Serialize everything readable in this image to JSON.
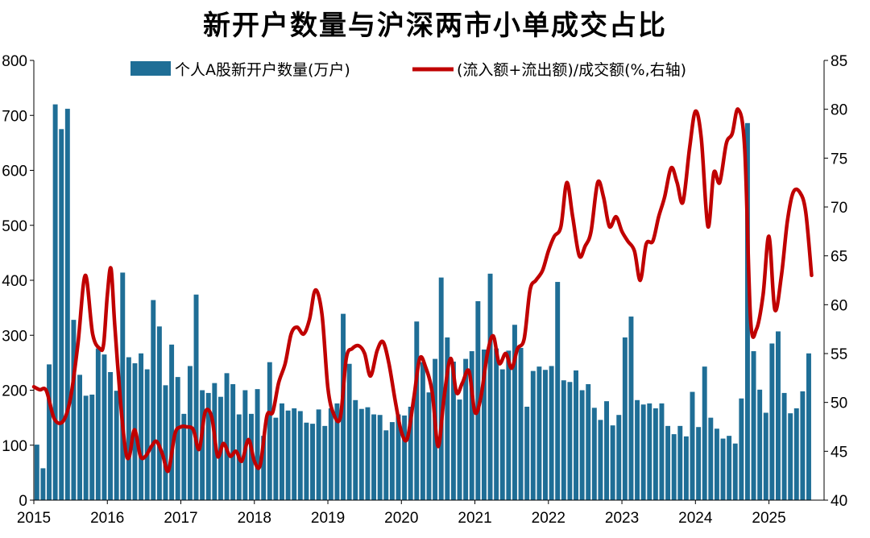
{
  "chart_data": {
    "type": "bar+line",
    "title": "新开户数量与沪深两市小单成交占比",
    "series": [
      {
        "name": "个人A股新开户数量(万户)",
        "type": "bar",
        "axis": "left",
        "color": "#1f6e96",
        "values": [
          101,
          58,
          247,
          720,
          675,
          712,
          328,
          228,
          190,
          192,
          276,
          265,
          233,
          199,
          414,
          260,
          249,
          267,
          238,
          364,
          316,
          209,
          283,
          224,
          157,
          244,
          374,
          200,
          195,
          213,
          188,
          231,
          211,
          156,
          200,
          157,
          202,
          117,
          251,
          150,
          176,
          163,
          167,
          162,
          141,
          139,
          165,
          135,
          167,
          176,
          339,
          248,
          182,
          166,
          169,
          156,
          155,
          127,
          142,
          156,
          154,
          170,
          325,
          251,
          196,
          257,
          405,
          296,
          252,
          183,
          257,
          271,
          362,
          274,
          412,
          276,
          238,
          272,
          319,
          277,
          170,
          235,
          243,
          237,
          244,
          397,
          218,
          215,
          236,
          200,
          211,
          168,
          146,
          180,
          136,
          155,
          296,
          334,
          182,
          174,
          176,
          167,
          176,
          135,
          120,
          135,
          116,
          197,
          133,
          243,
          150,
          130,
          112,
          117,
          103,
          185,
          686,
          271,
          201,
          159,
          285,
          307,
          195,
          158,
          167,
          198,
          267
        ]
      },
      {
        "name": "(流入额+流出额)/成交额(%,右轴)",
        "type": "line",
        "axis": "right",
        "color": "#c00000",
        "points": [
          [
            2015.0,
            51.6
          ],
          [
            2015.08,
            51.3
          ],
          [
            2015.17,
            51.2
          ],
          [
            2015.28,
            48.3
          ],
          [
            2015.4,
            48.1
          ],
          [
            2015.5,
            50.5
          ],
          [
            2015.6,
            56.0
          ],
          [
            2015.7,
            63.0
          ],
          [
            2015.8,
            57.0
          ],
          [
            2015.9,
            55.5
          ],
          [
            2015.95,
            56.0
          ],
          [
            2016.0,
            61.0
          ],
          [
            2016.05,
            63.7
          ],
          [
            2016.1,
            58.0
          ],
          [
            2016.18,
            50.0
          ],
          [
            2016.25,
            45.0
          ],
          [
            2016.3,
            44.5
          ],
          [
            2016.37,
            47.2
          ],
          [
            2016.45,
            44.5
          ],
          [
            2016.52,
            44.5
          ],
          [
            2016.6,
            45.5
          ],
          [
            2016.67,
            46.0
          ],
          [
            2016.75,
            44.7
          ],
          [
            2016.83,
            43.0
          ],
          [
            2016.92,
            46.8
          ],
          [
            2017.0,
            47.5
          ],
          [
            2017.08,
            47.5
          ],
          [
            2017.17,
            47.2
          ],
          [
            2017.25,
            45.2
          ],
          [
            2017.33,
            49.0
          ],
          [
            2017.42,
            48.5
          ],
          [
            2017.5,
            44.5
          ],
          [
            2017.58,
            45.8
          ],
          [
            2017.67,
            44.5
          ],
          [
            2017.75,
            45.0
          ],
          [
            2017.83,
            44.0
          ],
          [
            2017.92,
            46.2
          ],
          [
            2018.0,
            44.0
          ],
          [
            2018.08,
            43.6
          ],
          [
            2018.17,
            48.6
          ],
          [
            2018.25,
            49.0
          ],
          [
            2018.33,
            52.0
          ],
          [
            2018.42,
            54.0
          ],
          [
            2018.5,
            57.0
          ],
          [
            2018.58,
            57.7
          ],
          [
            2018.67,
            57.0
          ],
          [
            2018.75,
            58.5
          ],
          [
            2018.83,
            61.5
          ],
          [
            2018.92,
            59.0
          ],
          [
            2019.0,
            51.5
          ],
          [
            2019.08,
            48.8
          ],
          [
            2019.17,
            48.5
          ],
          [
            2019.25,
            54.5
          ],
          [
            2019.33,
            55.5
          ],
          [
            2019.42,
            55.8
          ],
          [
            2019.5,
            55.0
          ],
          [
            2019.58,
            52.7
          ],
          [
            2019.67,
            55.3
          ],
          [
            2019.75,
            56.2
          ],
          [
            2019.83,
            54.0
          ],
          [
            2019.92,
            50.0
          ],
          [
            2020.0,
            47.0
          ],
          [
            2020.08,
            46.3
          ],
          [
            2020.17,
            50.5
          ],
          [
            2020.25,
            54.5
          ],
          [
            2020.33,
            53.6
          ],
          [
            2020.42,
            51.0
          ],
          [
            2020.5,
            45.5
          ],
          [
            2020.58,
            50.5
          ],
          [
            2020.67,
            54.5
          ],
          [
            2020.75,
            51.0
          ],
          [
            2020.83,
            52.0
          ],
          [
            2020.92,
            53.2
          ],
          [
            2021.0,
            49.0
          ],
          [
            2021.08,
            50.5
          ],
          [
            2021.17,
            55.0
          ],
          [
            2021.25,
            56.8
          ],
          [
            2021.33,
            54.0
          ],
          [
            2021.42,
            55.0
          ],
          [
            2021.5,
            53.5
          ],
          [
            2021.58,
            55.5
          ],
          [
            2021.67,
            56.5
          ],
          [
            2021.75,
            61.5
          ],
          [
            2021.83,
            62.5
          ],
          [
            2021.92,
            63.5
          ],
          [
            2022.0,
            65.5
          ],
          [
            2022.08,
            67.0
          ],
          [
            2022.17,
            68.0
          ],
          [
            2022.25,
            72.5
          ],
          [
            2022.33,
            69.0
          ],
          [
            2022.42,
            65.0
          ],
          [
            2022.5,
            66.0
          ],
          [
            2022.58,
            67.5
          ],
          [
            2022.67,
            72.5
          ],
          [
            2022.75,
            71.0
          ],
          [
            2022.83,
            68.0
          ],
          [
            2022.92,
            69.0
          ],
          [
            2023.0,
            67.5
          ],
          [
            2023.08,
            66.5
          ],
          [
            2023.17,
            65.5
          ],
          [
            2023.25,
            62.5
          ],
          [
            2023.33,
            66.2
          ],
          [
            2023.42,
            66.5
          ],
          [
            2023.5,
            69.0
          ],
          [
            2023.58,
            71.0
          ],
          [
            2023.67,
            74.0
          ],
          [
            2023.75,
            72.5
          ],
          [
            2023.83,
            70.5
          ],
          [
            2023.92,
            76.0
          ],
          [
            2024.0,
            79.8
          ],
          [
            2024.08,
            77.0
          ],
          [
            2024.17,
            68.0
          ],
          [
            2024.25,
            73.5
          ],
          [
            2024.33,
            72.5
          ],
          [
            2024.42,
            76.5
          ],
          [
            2024.5,
            77.5
          ],
          [
            2024.58,
            80.0
          ],
          [
            2024.67,
            76.0
          ],
          [
            2024.75,
            58.5
          ],
          [
            2024.83,
            57.5
          ],
          [
            2024.92,
            61.0
          ],
          [
            2025.0,
            67.0
          ],
          [
            2025.08,
            59.5
          ],
          [
            2025.17,
            63.0
          ],
          [
            2025.25,
            68.5
          ],
          [
            2025.33,
            71.5
          ],
          [
            2025.42,
            71.5
          ],
          [
            2025.5,
            69.5
          ],
          [
            2025.58,
            63.0
          ]
        ]
      }
    ],
    "x_start": 2015.0,
    "bar_step_months": 1,
    "xlim": [
      2015.0,
      2025.75
    ],
    "x_ticks": [
      "2015",
      "2016",
      "2017",
      "2018",
      "2019",
      "2020",
      "2021",
      "2022",
      "2023",
      "2024",
      "2025"
    ],
    "y_left": {
      "min": 0,
      "max": 800,
      "ticks": [
        0,
        100,
        200,
        300,
        400,
        500,
        600,
        700,
        800
      ]
    },
    "y_right": {
      "min": 40,
      "max": 85,
      "ticks": [
        40,
        45,
        50,
        55,
        60,
        65,
        70,
        75,
        80,
        85
      ]
    },
    "legend": {
      "position": "top",
      "entries": [
        "个人A股新开户数量(万户)",
        "(流入额+流出额)/成交额(%,右轴)"
      ]
    },
    "grid": false
  }
}
